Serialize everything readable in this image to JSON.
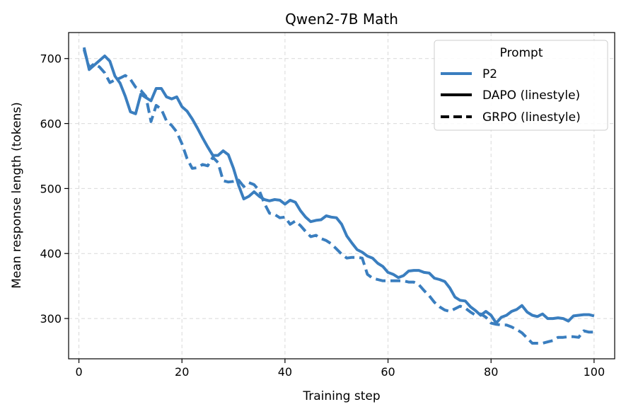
{
  "chart_data": {
    "type": "line",
    "title": "Qwen2-7B Math",
    "xlabel": "Training step",
    "ylabel": "Mean response length (tokens)",
    "xlim": [
      -2,
      104
    ],
    "ylim": [
      238,
      740
    ],
    "xticks": [
      0,
      20,
      40,
      60,
      80,
      100
    ],
    "yticks": [
      300,
      400,
      500,
      600,
      700
    ],
    "grid": true,
    "legend": {
      "title": "Prompt",
      "position": "top-right",
      "entries": [
        "P2",
        "DAPO (linestyle)",
        "GRPO (linestyle)"
      ]
    },
    "colors": {
      "P2": "#3a7ebf",
      "legend_black": "#000000"
    },
    "series": [
      {
        "name": "P2 DAPO",
        "style": "solid",
        "x": [
          1,
          2,
          3,
          4,
          5,
          6,
          7,
          8,
          9,
          10,
          11,
          12,
          13,
          14,
          15,
          16,
          17,
          18,
          19,
          20,
          21,
          22,
          23,
          24,
          25,
          26,
          27,
          28,
          29,
          30,
          31,
          32,
          33,
          34,
          35,
          36,
          37,
          38,
          39,
          40,
          41,
          42,
          43,
          44,
          45,
          46,
          47,
          48,
          49,
          50,
          51,
          52,
          53,
          54,
          55,
          56,
          57,
          58,
          59,
          60,
          61,
          62,
          63,
          64,
          65,
          66,
          67,
          68,
          69,
          70,
          71,
          72,
          73,
          74,
          75,
          76,
          77,
          78,
          79,
          80,
          81,
          82,
          83,
          84,
          85,
          86,
          87,
          88,
          89,
          90,
          91,
          92,
          93,
          94,
          95,
          96,
          97,
          98,
          99,
          100
        ],
        "y": [
          717,
          683,
          690,
          697,
          704,
          696,
          673,
          662,
          642,
          618,
          615,
          645,
          640,
          635,
          654,
          654,
          641,
          638,
          641,
          626,
          619,
          607,
          593,
          578,
          564,
          551,
          551,
          558,
          552,
          531,
          505,
          484,
          488,
          495,
          488,
          483,
          481,
          483,
          482,
          476,
          482,
          479,
          466,
          456,
          449,
          451,
          452,
          458,
          456,
          455,
          445,
          427,
          416,
          406,
          402,
          396,
          393,
          385,
          380,
          371,
          368,
          363,
          366,
          373,
          374,
          374,
          371,
          370,
          362,
          360,
          357,
          347,
          333,
          328,
          327,
          318,
          312,
          305,
          311,
          305,
          293,
          302,
          305,
          311,
          314,
          320,
          310,
          305,
          303,
          307,
          300,
          300,
          301,
          300,
          296,
          304,
          305,
          306,
          306,
          304
        ]
      },
      {
        "name": "P2 GRPO",
        "style": "dashed",
        "x": [
          1,
          2,
          3,
          4,
          5,
          6,
          7,
          8,
          9,
          10,
          11,
          12,
          13,
          14,
          15,
          16,
          17,
          18,
          19,
          20,
          21,
          22,
          23,
          24,
          25,
          26,
          27,
          28,
          29,
          30,
          31,
          32,
          33,
          34,
          35,
          36,
          37,
          38,
          39,
          40,
          41,
          42,
          43,
          44,
          45,
          46,
          47,
          48,
          49,
          50,
          51,
          52,
          53,
          54,
          55,
          56,
          57,
          58,
          59,
          60,
          61,
          62,
          63,
          64,
          65,
          66,
          67,
          68,
          69,
          70,
          71,
          72,
          73,
          74,
          75,
          76,
          77,
          78,
          79,
          80,
          81,
          82,
          83,
          84,
          85,
          86,
          87,
          88,
          89,
          90,
          91,
          92,
          93,
          94,
          95,
          96,
          97,
          98,
          99,
          100
        ],
        "y": [
          714,
          686,
          692,
          687,
          678,
          663,
          667,
          670,
          674,
          668,
          656,
          651,
          642,
          603,
          628,
          622,
          604,
          597,
          587,
          569,
          546,
          531,
          532,
          537,
          535,
          548,
          540,
          512,
          510,
          511,
          513,
          503,
          509,
          506,
          497,
          477,
          462,
          460,
          455,
          456,
          445,
          450,
          443,
          434,
          426,
          428,
          423,
          420,
          415,
          407,
          399,
          393,
          394,
          394,
          393,
          368,
          362,
          360,
          358,
          358,
          358,
          358,
          358,
          356,
          356,
          352,
          343,
          335,
          325,
          318,
          313,
          311,
          315,
          319,
          316,
          310,
          305,
          307,
          302,
          293,
          291,
          290,
          290,
          287,
          283,
          278,
          270,
          262,
          262,
          262,
          264,
          266,
          271,
          271,
          272,
          272,
          271,
          281,
          279,
          279
        ]
      }
    ]
  }
}
